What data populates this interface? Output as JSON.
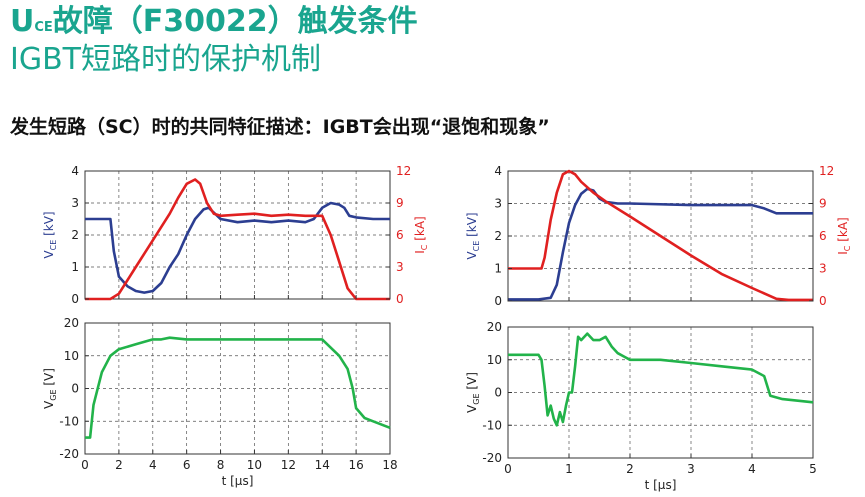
{
  "header": {
    "title_u": "U",
    "title_sub": "CE",
    "title_rest": "故障（F30022）触发条件",
    "subtitle": "IGBT短路时的保护机制",
    "description": "发生短路（SC）时的共同特征描述：IGBT会出现“退饱和现象”"
  },
  "colors": {
    "title": "#1aa58f",
    "vce": "#2c3e91",
    "ic": "#e02020",
    "vge": "#22b34a",
    "grid": "#555555"
  },
  "chart_data": [
    {
      "type": "line",
      "xlim": [
        0,
        18
      ],
      "xticks": [
        0,
        2,
        4,
        6,
        8,
        10,
        12,
        14,
        16,
        18
      ],
      "xlabel": "",
      "grid": true,
      "left_axis": {
        "label_main": "V",
        "label_sub": "CE",
        "label_unit": "[kV]",
        "ylim": [
          0,
          4
        ],
        "ticks": [
          0,
          1,
          2,
          3,
          4
        ]
      },
      "right_axis": {
        "label_main": "I",
        "label_sub": "C",
        "label_unit": "[kA]",
        "ylim": [
          0,
          12
        ],
        "ticks": [
          0,
          3,
          6,
          9,
          12
        ]
      },
      "series": [
        {
          "axis": "left",
          "color": "#2c3e91",
          "x": [
            0,
            1.5,
            1.7,
            2,
            2.5,
            3,
            3.5,
            4,
            4.5,
            5,
            5.5,
            6,
            6.5,
            7,
            7.3,
            7.7,
            8,
            9,
            10,
            11,
            12,
            13,
            13.5,
            14,
            14.5,
            15,
            15.3,
            15.6,
            16,
            17,
            18
          ],
          "y": [
            2.5,
            2.5,
            1.5,
            0.7,
            0.4,
            0.25,
            0.2,
            0.25,
            0.5,
            1.0,
            1.4,
            2.0,
            2.5,
            2.8,
            2.85,
            2.65,
            2.5,
            2.4,
            2.45,
            2.4,
            2.45,
            2.4,
            2.5,
            2.85,
            3.0,
            2.95,
            2.85,
            2.6,
            2.55,
            2.5,
            2.5
          ]
        },
        {
          "axis": "right",
          "color": "#e02020",
          "x": [
            0,
            1.5,
            2,
            3,
            4,
            5,
            5.5,
            6,
            6.5,
            6.8,
            7.2,
            7.6,
            8,
            9,
            10,
            11,
            12,
            13,
            14,
            14.5,
            15,
            15.5,
            16,
            16.5,
            18
          ],
          "y": [
            0,
            0,
            0.5,
            3,
            5.5,
            8,
            9.5,
            10.8,
            11.2,
            10.8,
            9,
            8,
            7.8,
            7.9,
            8,
            7.8,
            7.9,
            7.8,
            7.8,
            6,
            3.5,
            1,
            0,
            0,
            0
          ]
        }
      ]
    },
    {
      "type": "line",
      "xlim": [
        0,
        18
      ],
      "xticks": [
        0,
        2,
        4,
        6,
        8,
        10,
        12,
        14,
        16,
        18
      ],
      "xlabel": "t [μs]",
      "grid": true,
      "left_axis": {
        "label_main": "V",
        "label_sub": "GE",
        "label_unit": "[V]",
        "ylim": [
          -20,
          20
        ],
        "ticks": [
          -20,
          -10,
          0,
          10,
          20
        ]
      },
      "series": [
        {
          "axis": "left",
          "color": "#22b34a",
          "x": [
            0,
            0.3,
            0.5,
            1,
            1.5,
            2,
            3,
            4,
            4.5,
            5,
            6,
            8,
            10,
            12,
            13,
            14,
            15,
            15.5,
            15.8,
            16,
            16.5,
            17,
            18
          ],
          "y": [
            -15,
            -15,
            -5,
            5,
            10,
            12,
            13.5,
            15,
            15,
            15.5,
            15,
            15,
            15,
            15,
            15,
            15,
            10,
            6,
            0,
            -6,
            -9,
            -10,
            -12
          ]
        }
      ]
    },
    {
      "type": "line",
      "xlim": [
        0,
        5
      ],
      "xticks": [
        0,
        1,
        2,
        3,
        4,
        5
      ],
      "xlabel": "",
      "grid": true,
      "left_axis": {
        "label_main": "V",
        "label_sub": "CE",
        "label_unit": "[kV]",
        "ylim": [
          0,
          4
        ],
        "ticks": [
          0,
          1,
          2,
          3,
          4
        ]
      },
      "right_axis": {
        "label_main": "I",
        "label_sub": "C",
        "label_unit": "[kA]",
        "ylim": [
          0,
          12
        ],
        "ticks": [
          0,
          3,
          6,
          9,
          12
        ]
      },
      "series": [
        {
          "axis": "left",
          "color": "#2c3e91",
          "x": [
            0,
            0.5,
            0.7,
            0.8,
            0.9,
            1.0,
            1.1,
            1.2,
            1.3,
            1.4,
            1.5,
            1.6,
            1.8,
            2,
            3,
            4,
            4.2,
            4.4,
            5
          ],
          "y": [
            0.05,
            0.05,
            0.1,
            0.5,
            1.5,
            2.4,
            2.95,
            3.3,
            3.45,
            3.4,
            3.15,
            3.05,
            3.0,
            3.0,
            2.95,
            2.95,
            2.85,
            2.7,
            2.7
          ]
        },
        {
          "axis": "right",
          "color": "#e02020",
          "x": [
            0,
            0.55,
            0.6,
            0.7,
            0.8,
            0.9,
            1.0,
            1.1,
            1.2,
            1.4,
            1.6,
            2,
            2.5,
            3,
            3.5,
            4,
            4.4,
            4.6,
            5
          ],
          "y": [
            3,
            3,
            4,
            7.5,
            10,
            11.7,
            12,
            11.7,
            11,
            10,
            9.2,
            7.8,
            6,
            4.2,
            2.5,
            1.2,
            0.2,
            0.1,
            0.1
          ]
        }
      ]
    },
    {
      "type": "line",
      "xlim": [
        0,
        5
      ],
      "xticks": [
        0,
        1,
        2,
        3,
        4,
        5
      ],
      "xlabel": "t [μs]",
      "grid": true,
      "left_axis": {
        "label_main": "V",
        "label_sub": "GE",
        "label_unit": "[V]",
        "ylim": [
          -20,
          20
        ],
        "ticks": [
          -20,
          -10,
          0,
          10,
          20
        ]
      },
      "series": [
        {
          "axis": "left",
          "color": "#22b34a",
          "x": [
            0,
            0.5,
            0.55,
            0.6,
            0.65,
            0.7,
            0.75,
            0.8,
            0.85,
            0.9,
            0.95,
            1.0,
            1.05,
            1.1,
            1.15,
            1.2,
            1.3,
            1.4,
            1.5,
            1.6,
            1.7,
            1.8,
            1.9,
            2,
            2.5,
            3,
            3.5,
            4,
            4.2,
            4.3,
            4.5,
            5
          ],
          "y": [
            11.5,
            11.5,
            10,
            2,
            -7,
            -4,
            -8,
            -10,
            -6,
            -9,
            -4,
            0,
            0,
            8,
            17,
            16,
            18,
            16,
            16,
            17,
            14,
            12,
            11,
            10,
            10,
            9,
            8,
            7,
            5,
            -1,
            -2,
            -3
          ]
        }
      ]
    }
  ]
}
